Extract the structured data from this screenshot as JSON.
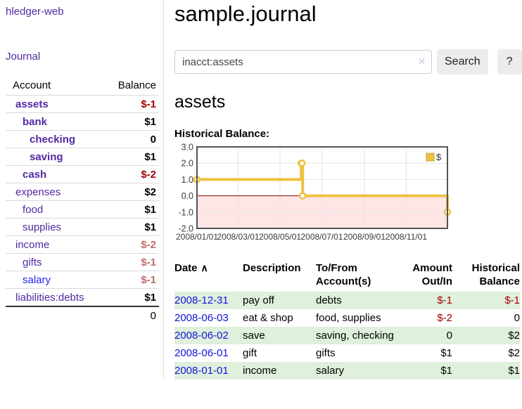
{
  "brand": "hledger-web",
  "nav": {
    "journal": "Journal"
  },
  "sidebar": {
    "headers": {
      "account": "Account",
      "balance": "Balance"
    },
    "rows": [
      {
        "account": "assets",
        "balance": "$-1",
        "indent": 1,
        "current": true,
        "neg": "strong"
      },
      {
        "account": "bank",
        "balance": "$1",
        "indent": 2,
        "current": true
      },
      {
        "account": "checking",
        "balance": "0",
        "indent": 3,
        "current": true
      },
      {
        "account": "saving",
        "balance": "$1",
        "indent": 3,
        "current": true
      },
      {
        "account": "cash",
        "balance": "$-2",
        "indent": 2,
        "current": true,
        "neg": "strong"
      },
      {
        "account": "expenses",
        "balance": "$2",
        "indent": 1
      },
      {
        "account": "food",
        "balance": "$1",
        "indent": 2
      },
      {
        "account": "supplies",
        "balance": "$1",
        "indent": 2
      },
      {
        "account": "income",
        "balance": "$-2",
        "indent": 1,
        "neg": "soft"
      },
      {
        "account": "gifts",
        "balance": "$-1",
        "indent": 2,
        "neg": "soft"
      },
      {
        "account": "salary",
        "balance": "$-1",
        "indent": 2,
        "neg": "soft",
        "unvisited": true
      },
      {
        "account": "liabilities:debts",
        "balance": "$1",
        "indent": 1
      }
    ],
    "total": "0"
  },
  "main": {
    "title": "sample.journal",
    "search": {
      "value": "inacct:assets",
      "clear_icon": "✕",
      "search_button": "Search",
      "help_button": "?"
    },
    "account_heading": "assets",
    "chart_label": "Historical Balance:"
  },
  "chart_data": {
    "type": "line",
    "step": true,
    "title": "Historical Balance",
    "legend": [
      "$"
    ],
    "legend_position": "top-right",
    "x": [
      "2008-01-01",
      "2008-06-01",
      "2008-06-02",
      "2008-06-03",
      "2008-12-31"
    ],
    "values": [
      1,
      2,
      2,
      0,
      -1
    ],
    "x_ticks": [
      "2008/01/01",
      "2008/03/01",
      "2008/05/01",
      "2008/07/01",
      "2008/09/01",
      "2008/11/01"
    ],
    "y_ticks": [
      "3.0",
      "2.0",
      "1.0",
      "0.0",
      "-1.0",
      "-2.0"
    ],
    "xlim": [
      "2008-01-01",
      "2008-12-31"
    ],
    "ylim": [
      -2,
      3
    ],
    "grid": true,
    "negative_region_shaded": true,
    "colors": {
      "series": "#edc240",
      "negative_fill": "rgba(255,0,0,0.10)",
      "zero_line": "#8b0000",
      "border": "#545454"
    }
  },
  "register": {
    "sort_asc_icon": "∧",
    "headers": {
      "date": "Date",
      "description": "Description",
      "accounts": "To/From Account(s)",
      "amount": "Amount Out/In",
      "balance": "Historical Balance"
    },
    "rows": [
      {
        "date": "2008-12-31",
        "description": "pay off",
        "accounts": "debts",
        "amount": "$-1",
        "balance": "$-1",
        "amount_neg": true,
        "balance_neg": true
      },
      {
        "date": "2008-06-03",
        "description": "eat & shop",
        "accounts": "food, supplies",
        "amount": "$-2",
        "balance": "0",
        "amount_neg": true
      },
      {
        "date": "2008-06-02",
        "description": "save",
        "accounts": "saving, checking",
        "amount": "0",
        "balance": "$2"
      },
      {
        "date": "2008-06-01",
        "description": "gift",
        "accounts": "gifts",
        "amount": "$1",
        "balance": "$2"
      },
      {
        "date": "2008-01-01",
        "description": "income",
        "accounts": "salary",
        "amount": "$1",
        "balance": "$1"
      }
    ]
  }
}
